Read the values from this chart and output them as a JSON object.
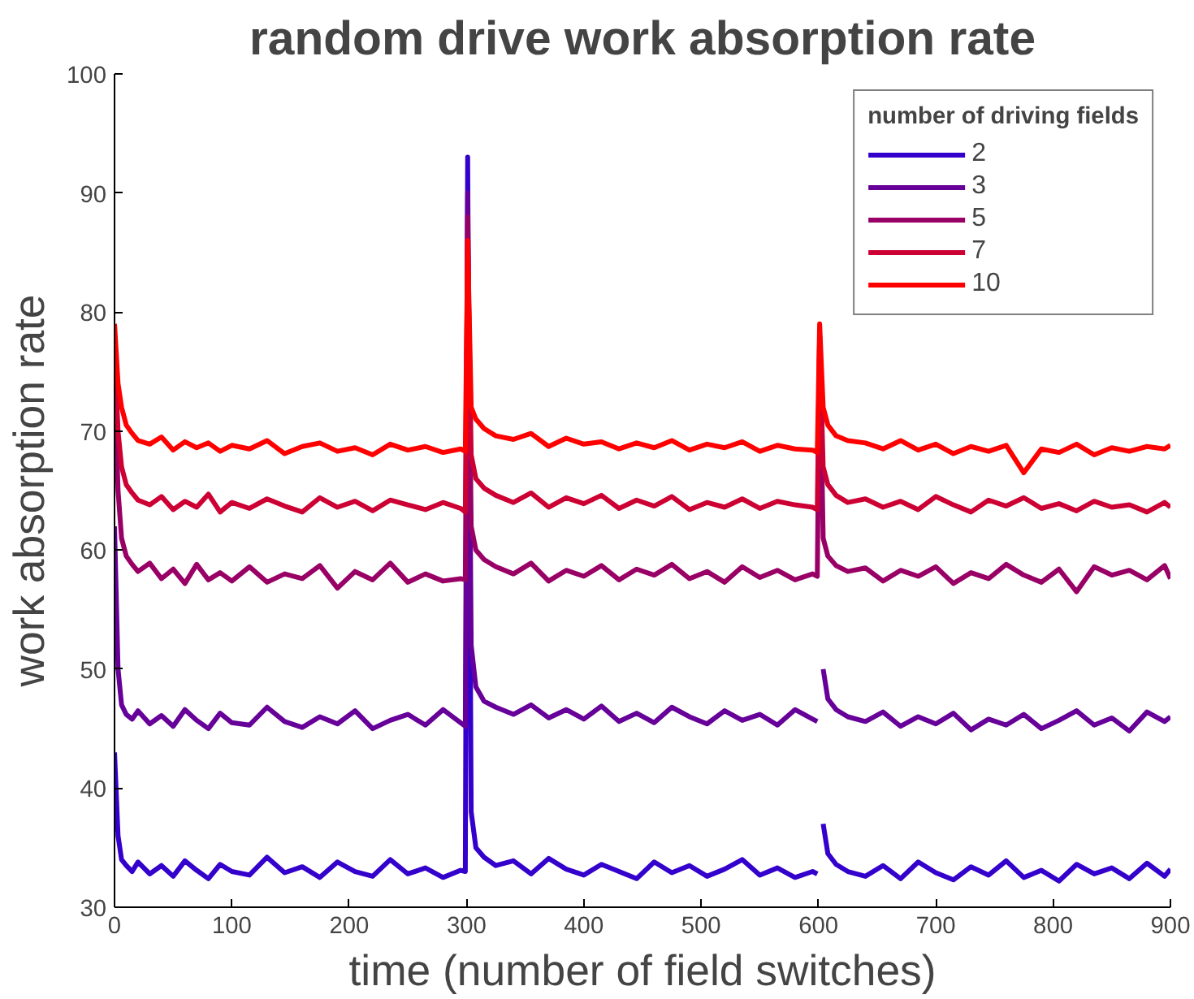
{
  "chart_data": {
    "type": "line",
    "title": "random drive work absorption rate",
    "xlabel": "time (number of field switches)",
    "ylabel": "work absorption rate",
    "legend_title": "number of driving fields",
    "legend": "top right",
    "grid": false,
    "marker": "none",
    "line_style": "solid",
    "x": [
      0,
      3,
      6,
      10,
      15,
      20,
      30,
      40,
      50,
      60,
      70,
      80,
      90,
      100,
      115,
      130,
      145,
      160,
      175,
      190,
      205,
      220,
      235,
      250,
      265,
      280,
      295,
      299,
      301,
      304,
      308,
      315,
      325,
      340,
      355,
      370,
      385,
      400,
      415,
      430,
      445,
      460,
      475,
      490,
      505,
      520,
      535,
      550,
      565,
      580,
      595,
      599,
      601,
      604,
      608,
      615,
      625,
      640,
      655,
      670,
      685,
      700,
      715,
      730,
      745,
      760,
      775,
      790,
      805,
      820,
      835,
      850,
      865,
      880,
      895,
      900
    ],
    "xlim": [
      0,
      900
    ],
    "xticks": [
      0,
      100,
      200,
      300,
      400,
      500,
      600,
      700,
      800,
      900
    ],
    "ylim": [
      30,
      100
    ],
    "yticks": [
      30,
      40,
      50,
      60,
      70,
      80,
      90,
      100
    ],
    "series": [
      {
        "name": "2",
        "color": "#3300cc",
        "values": [
          43,
          36,
          34,
          33.5,
          33,
          33.8,
          32.8,
          33.5,
          32.6,
          33.9,
          33.1,
          32.4,
          33.6,
          33.0,
          32.7,
          34.2,
          32.9,
          33.4,
          32.5,
          33.8,
          33.0,
          32.6,
          34.0,
          32.8,
          33.3,
          32.5,
          33.1,
          33.0,
          93,
          38,
          35,
          34.2,
          33.5,
          33.9,
          32.8,
          34.1,
          33.2,
          32.7,
          33.6,
          33.0,
          32.4,
          33.8,
          32.9,
          33.5,
          32.6,
          33.2,
          34.0,
          32.7,
          33.3,
          32.5,
          33.0,
          32.8,
          null,
          37,
          34.5,
          33.6,
          33.0,
          32.6,
          33.5,
          32.4,
          33.8,
          32.9,
          32.3,
          33.4,
          32.7,
          33.9,
          32.5,
          33.1,
          32.2,
          33.6,
          32.8,
          33.3,
          32.4,
          33.7,
          32.6,
          33.2
        ]
      },
      {
        "name": "3",
        "color": "#660099",
        "values": [
          62,
          50,
          47,
          46.2,
          45.8,
          46.5,
          45.4,
          46.1,
          45.2,
          46.6,
          45.7,
          45.0,
          46.3,
          45.5,
          45.3,
          46.8,
          45.6,
          45.1,
          46.0,
          45.4,
          46.5,
          45.0,
          45.7,
          46.2,
          45.3,
          46.6,
          45.5,
          45.2,
          90,
          52,
          48.5,
          47.3,
          46.8,
          46.2,
          47.0,
          45.9,
          46.6,
          45.8,
          46.9,
          45.6,
          46.3,
          45.5,
          46.8,
          46.0,
          45.4,
          46.5,
          45.7,
          46.2,
          45.3,
          46.6,
          45.8,
          45.6,
          null,
          50,
          47.5,
          46.6,
          46.0,
          45.6,
          46.4,
          45.2,
          46.0,
          45.4,
          46.3,
          44.9,
          45.8,
          45.3,
          46.2,
          45.0,
          45.7,
          46.5,
          45.3,
          45.9,
          44.8,
          46.4,
          45.6,
          46.0
        ]
      },
      {
        "name": "5",
        "color": "#990066",
        "values": [
          75,
          65,
          61,
          59.5,
          58.8,
          58.2,
          58.9,
          57.6,
          58.4,
          57.2,
          58.8,
          57.5,
          58.1,
          57.4,
          58.6,
          57.3,
          58.0,
          57.6,
          58.7,
          56.8,
          58.2,
          57.5,
          58.9,
          57.3,
          58.0,
          57.4,
          57.6,
          57.5,
          88,
          62,
          60,
          59.2,
          58.6,
          58.0,
          58.9,
          57.4,
          58.3,
          57.8,
          58.7,
          57.5,
          58.4,
          57.9,
          58.8,
          57.6,
          58.2,
          57.3,
          58.6,
          57.7,
          58.3,
          57.5,
          58.0,
          57.8,
          78,
          61,
          59.5,
          58.7,
          58.2,
          58.5,
          57.4,
          58.3,
          57.8,
          58.6,
          57.2,
          58.1,
          57.6,
          58.8,
          57.9,
          57.3,
          58.4,
          56.5,
          58.6,
          57.9,
          58.3,
          57.5,
          58.7,
          57.6
        ]
      },
      {
        "name": "7",
        "color": "#cc0033",
        "values": [
          77,
          70,
          67,
          65.5,
          64.8,
          64.2,
          63.8,
          64.5,
          63.4,
          64.1,
          63.6,
          64.7,
          63.2,
          64.0,
          63.5,
          64.3,
          63.7,
          63.2,
          64.4,
          63.6,
          64.1,
          63.3,
          64.2,
          63.8,
          63.4,
          64.0,
          63.5,
          63.2,
          86,
          68,
          66,
          65.2,
          64.6,
          64.0,
          64.8,
          63.6,
          64.4,
          63.9,
          64.6,
          63.5,
          64.2,
          63.7,
          64.5,
          63.4,
          64.0,
          63.6,
          64.3,
          63.5,
          64.1,
          63.8,
          63.6,
          63.4,
          78,
          67,
          65.5,
          64.6,
          64.0,
          64.3,
          63.6,
          64.1,
          63.4,
          64.5,
          63.8,
          63.2,
          64.2,
          63.7,
          64.4,
          63.5,
          63.9,
          63.3,
          64.1,
          63.6,
          63.8,
          63.2,
          64.0,
          63.6
        ]
      },
      {
        "name": "10",
        "color": "#ff0000",
        "values": [
          79,
          74,
          72,
          70.5,
          69.8,
          69.2,
          68.9,
          69.5,
          68.4,
          69.1,
          68.6,
          69.0,
          68.3,
          68.8,
          68.5,
          69.2,
          68.1,
          68.7,
          69.0,
          68.3,
          68.6,
          68.0,
          68.9,
          68.4,
          68.7,
          68.2,
          68.5,
          68.3,
          86,
          72,
          71,
          70.2,
          69.6,
          69.3,
          69.8,
          68.7,
          69.4,
          68.9,
          69.1,
          68.5,
          69.0,
          68.6,
          69.2,
          68.4,
          68.9,
          68.6,
          69.1,
          68.3,
          68.8,
          68.5,
          68.4,
          68.2,
          79,
          72,
          70.5,
          69.6,
          69.2,
          69.0,
          68.5,
          69.2,
          68.4,
          68.9,
          68.1,
          68.7,
          68.3,
          68.8,
          66.5,
          68.5,
          68.2,
          68.9,
          68.0,
          68.6,
          68.3,
          68.7,
          68.5,
          68.8
        ]
      }
    ]
  }
}
